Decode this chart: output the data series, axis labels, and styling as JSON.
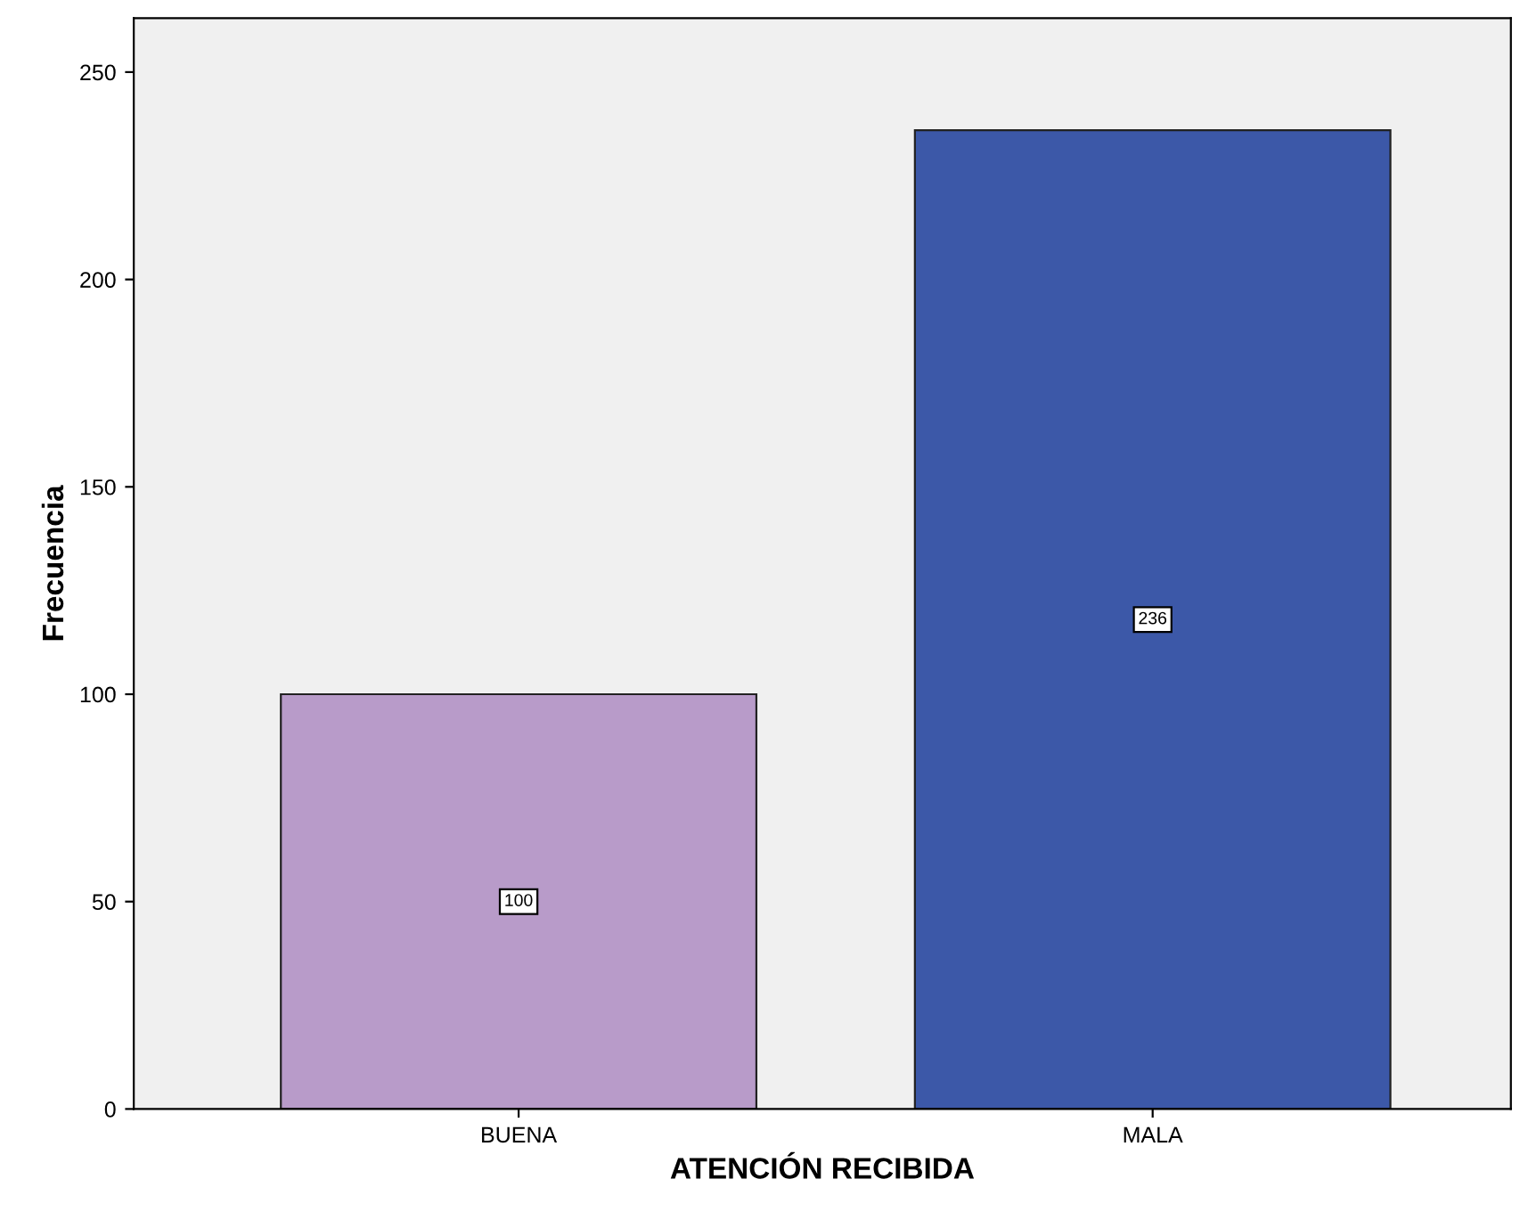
{
  "chart_data": {
    "type": "bar",
    "xlabel": "ATENCIÓN RECIBIDA",
    "ylabel": "Frecuencia",
    "categories": [
      "BUENA",
      "MALA"
    ],
    "values": [
      100,
      236
    ],
    "colors": [
      "#b89bc9",
      "#3c58a8"
    ],
    "ylim": [
      0,
      263
    ],
    "yticks": [
      0,
      50,
      100,
      150,
      200,
      250
    ],
    "grid": false,
    "data_labels": true
  }
}
